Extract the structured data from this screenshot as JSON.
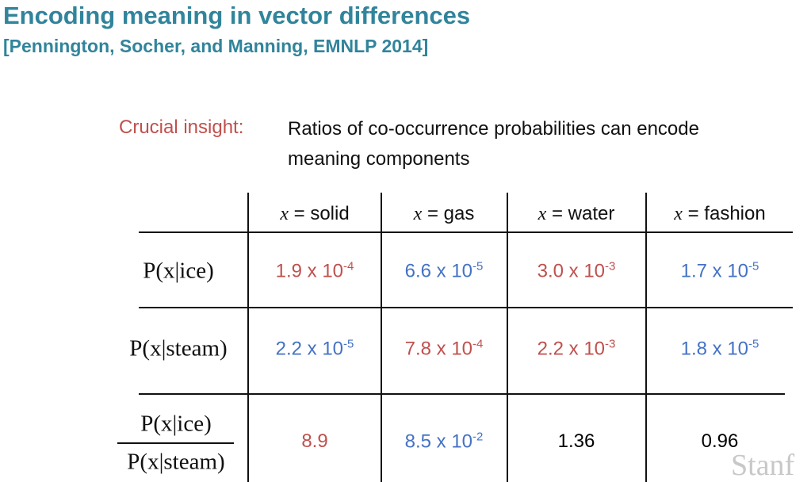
{
  "header": {
    "title": "Encoding meaning in vector differences",
    "citation": "[Pennington, Socher, and Manning, EMNLP 2014]"
  },
  "insight": {
    "label": "Crucial insight:",
    "lines": [
      "Ratios of co-occurrence probabilities can encode",
      "meaning components"
    ]
  },
  "table": {
    "columns": [
      {
        "var": "x",
        "label": "= solid"
      },
      {
        "var": "x",
        "label": "= gas"
      },
      {
        "var": "x",
        "label": "= water"
      },
      {
        "var": "x",
        "label": "= fashion"
      }
    ],
    "rows": [
      {
        "label": "P(x|ice)",
        "cells": [
          {
            "base": "1.9 x 10",
            "exp": "-4",
            "color": "#c0504d"
          },
          {
            "base": "6.6 x 10",
            "exp": "-5",
            "color": "#4472c4"
          },
          {
            "base": "3.0 x 10",
            "exp": "-3",
            "color": "#c0504d"
          },
          {
            "base": "1.7 x 10",
            "exp": "-5",
            "color": "#4472c4"
          }
        ]
      },
      {
        "label": "P(x|steam)",
        "cells": [
          {
            "base": "2.2 x 10",
            "exp": "-5",
            "color": "#4472c4"
          },
          {
            "base": "7.8 x 10",
            "exp": "-4",
            "color": "#c0504d"
          },
          {
            "base": "2.2 x 10",
            "exp": "-3",
            "color": "#c0504d"
          },
          {
            "base": "1.8 x 10",
            "exp": "-5",
            "color": "#4472c4"
          }
        ]
      },
      {
        "numerator": "P(x|ice)",
        "denominator": "P(x|steam)",
        "cells": [
          {
            "text": "8.9",
            "color": "#c0504d"
          },
          {
            "base": "8.5 x 10",
            "exp": "-2",
            "color": "#4472c4"
          },
          {
            "text": "1.36",
            "color": "#000000"
          },
          {
            "text": "0.96",
            "color": "#000000"
          }
        ]
      }
    ]
  },
  "watermark": "Stanf"
}
